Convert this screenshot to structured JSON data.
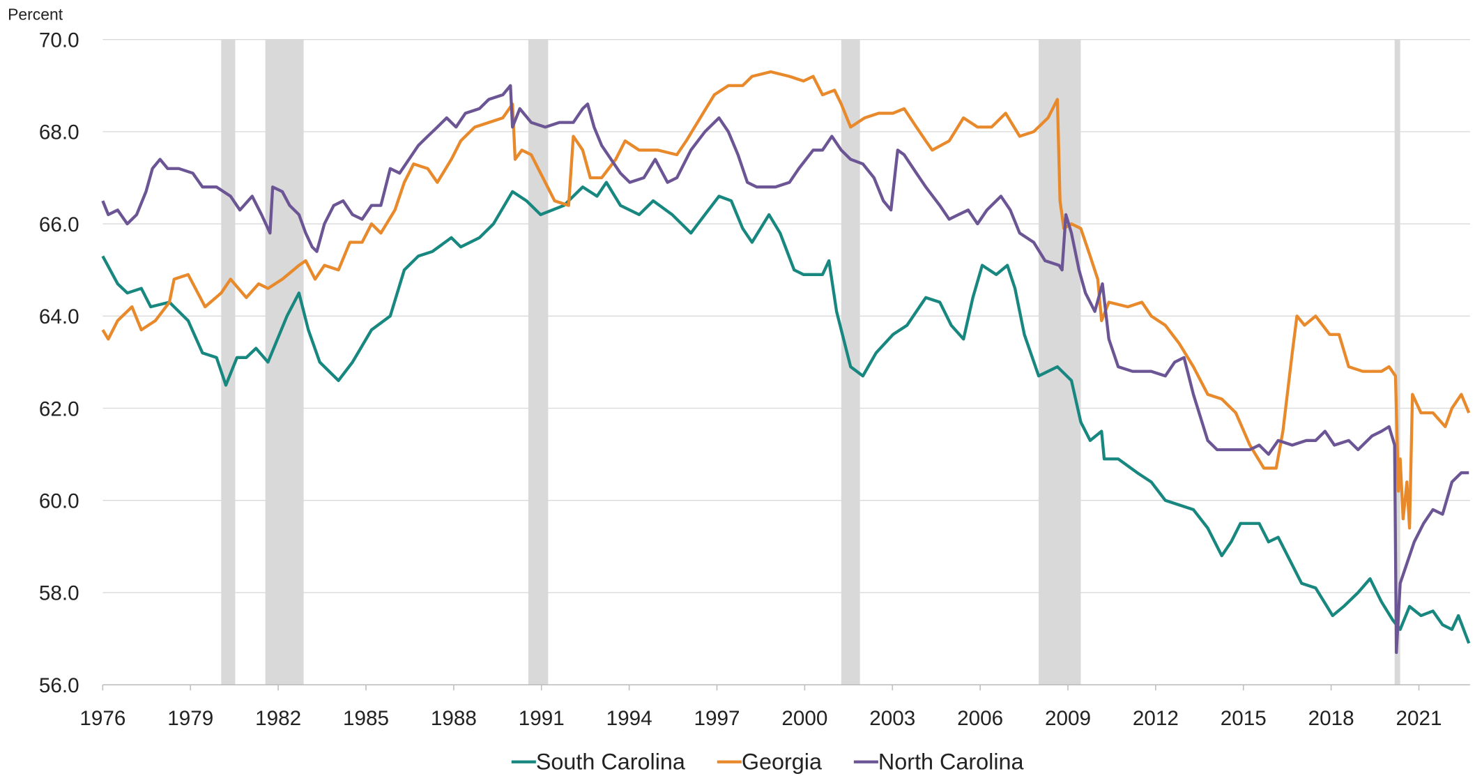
{
  "chart_data": {
    "type": "line",
    "y_axis_label": "Percent",
    "xlim": [
      1976,
      2022.75
    ],
    "xticks": [
      1976,
      1979,
      1982,
      1985,
      1988,
      1991,
      1994,
      1997,
      2000,
      2003,
      2006,
      2009,
      2012,
      2015,
      2018,
      2021
    ],
    "ylim": [
      56,
      70
    ],
    "yticks": [
      {
        "value": 56,
        "label": "56.0"
      },
      {
        "value": 58,
        "label": "58.0"
      },
      {
        "value": 60,
        "label": "60.0"
      },
      {
        "value": 62,
        "label": "62.0"
      },
      {
        "value": 64,
        "label": "64.0"
      },
      {
        "value": 66,
        "label": "66.0"
      },
      {
        "value": 68,
        "label": "68.0"
      },
      {
        "value": 70,
        "label": "70.0"
      }
    ],
    "grid": true,
    "legend": "bottom",
    "recession_color": "#d9d9d9",
    "recessions": [
      [
        1980.05,
        1980.53
      ],
      [
        1981.56,
        1982.87
      ],
      [
        1990.55,
        1991.23
      ],
      [
        2001.25,
        2001.89
      ],
      [
        2008.0,
        2009.44
      ],
      [
        2020.17,
        2020.36
      ]
    ],
    "series": [
      {
        "name": "South Carolina",
        "color": "#17877f",
        "x": [
          1976.0,
          1976.51,
          1976.84,
          1977.32,
          1977.64,
          1978.28,
          1978.92,
          1979.41,
          1979.89,
          1980.21,
          1980.59,
          1980.91,
          1981.24,
          1981.65,
          1982.3,
          1982.71,
          1983.03,
          1983.42,
          1984.06,
          1984.54,
          1985.19,
          1985.83,
          1986.31,
          1986.79,
          1987.27,
          1987.92,
          1988.24,
          1988.88,
          1989.36,
          1990.01,
          1990.49,
          1990.97,
          1991.77,
          1992.41,
          1992.9,
          1993.22,
          1993.7,
          1994.34,
          1994.82,
          1995.47,
          1996.11,
          1996.59,
          1997.07,
          1997.49,
          1997.88,
          1998.2,
          1998.78,
          1999.16,
          1999.64,
          1999.96,
          2000.61,
          2000.83,
          2001.09,
          2001.57,
          2001.99,
          2002.44,
          2003.02,
          2003.5,
          2004.14,
          2004.62,
          2005.01,
          2005.43,
          2005.75,
          2006.07,
          2006.55,
          2006.93,
          2007.19,
          2007.51,
          2008.0,
          2008.64,
          2009.12,
          2009.44,
          2009.76,
          2010.15,
          2010.24,
          2010.72,
          2011.37,
          2011.85,
          2012.33,
          2012.81,
          2013.29,
          2013.78,
          2014.26,
          2014.58,
          2014.9,
          2015.54,
          2015.86,
          2016.19,
          2016.67,
          2016.99,
          2017.47,
          2018.05,
          2018.43,
          2018.92,
          2019.33,
          2019.72,
          2020.11,
          2020.36,
          2020.68,
          2021.07,
          2021.48,
          2021.81,
          2022.13,
          2022.35,
          2022.71
        ],
        "values": [
          65.3,
          64.7,
          64.5,
          64.6,
          64.2,
          64.3,
          63.9,
          63.2,
          63.1,
          62.5,
          63.1,
          63.1,
          63.3,
          63.0,
          64.0,
          64.5,
          63.7,
          63.0,
          62.6,
          63.0,
          63.7,
          64.0,
          65.0,
          65.3,
          65.4,
          65.7,
          65.5,
          65.7,
          66.0,
          66.7,
          66.5,
          66.2,
          66.4,
          66.8,
          66.6,
          66.9,
          66.4,
          66.2,
          66.5,
          66.2,
          65.8,
          66.2,
          66.6,
          66.5,
          65.9,
          65.6,
          66.2,
          65.8,
          65.0,
          64.9,
          64.9,
          65.2,
          64.1,
          62.9,
          62.7,
          63.2,
          63.6,
          63.8,
          64.4,
          64.3,
          63.8,
          63.5,
          64.4,
          65.1,
          64.9,
          65.1,
          64.6,
          63.6,
          62.7,
          62.9,
          62.6,
          61.7,
          61.3,
          61.5,
          60.9,
          60.9,
          60.6,
          60.4,
          60.0,
          59.9,
          59.8,
          59.4,
          58.8,
          59.1,
          59.5,
          59.5,
          59.1,
          59.2,
          58.6,
          58.2,
          58.1,
          57.5,
          57.7,
          58.0,
          58.3,
          57.8,
          57.4,
          57.2,
          57.7,
          57.5,
          57.6,
          57.3,
          57.2,
          57.5,
          56.9
        ]
      },
      {
        "name": "Georgia",
        "color": "#e8892b",
        "x": [
          1976.0,
          1976.19,
          1976.51,
          1977.0,
          1977.32,
          1977.8,
          1978.28,
          1978.44,
          1978.92,
          1979.5,
          1980.05,
          1980.37,
          1980.91,
          1981.33,
          1981.65,
          1982.14,
          1982.71,
          1982.94,
          1983.26,
          1983.58,
          1984.06,
          1984.45,
          1984.87,
          1985.19,
          1985.51,
          1985.99,
          1986.31,
          1986.63,
          1987.11,
          1987.44,
          1987.92,
          1988.24,
          1988.72,
          1989.2,
          1989.68,
          1990.01,
          1990.1,
          1990.33,
          1990.65,
          1990.97,
          1991.45,
          1991.93,
          1992.09,
          1992.41,
          1992.67,
          1993.06,
          1993.54,
          1993.86,
          1994.34,
          1994.98,
          1995.63,
          1995.95,
          1996.43,
          1996.91,
          1997.39,
          1997.88,
          1998.2,
          1998.84,
          1999.48,
          1999.96,
          2000.29,
          2000.61,
          2001.02,
          2001.25,
          2001.57,
          2002.05,
          2002.53,
          2003.02,
          2003.4,
          2003.82,
          2004.14,
          2004.36,
          2004.94,
          2005.43,
          2005.91,
          2006.39,
          2006.87,
          2007.35,
          2007.83,
          2008.32,
          2008.64,
          2008.73,
          2008.86,
          2009.12,
          2009.44,
          2009.76,
          2010.02,
          2010.15,
          2010.4,
          2011.05,
          2011.53,
          2011.85,
          2012.33,
          2012.81,
          2013.29,
          2013.78,
          2014.26,
          2014.74,
          2015.22,
          2015.7,
          2016.12,
          2016.35,
          2016.67,
          2016.83,
          2017.09,
          2017.47,
          2017.95,
          2018.27,
          2018.6,
          2019.08,
          2019.72,
          2019.98,
          2020.2,
          2020.3,
          2020.36,
          2020.46,
          2020.59,
          2020.68,
          2020.78,
          2021.07,
          2021.48,
          2021.9,
          2022.13,
          2022.45,
          2022.71
        ],
        "values": [
          63.7,
          63.5,
          63.9,
          64.2,
          63.7,
          63.9,
          64.3,
          64.8,
          64.9,
          64.2,
          64.5,
          64.8,
          64.4,
          64.7,
          64.6,
          64.8,
          65.1,
          65.2,
          64.8,
          65.1,
          65.0,
          65.6,
          65.6,
          66.0,
          65.8,
          66.3,
          66.9,
          67.3,
          67.2,
          66.9,
          67.4,
          67.8,
          68.1,
          68.2,
          68.3,
          68.6,
          67.4,
          67.6,
          67.5,
          67.1,
          66.5,
          66.4,
          67.9,
          67.6,
          67.0,
          67.0,
          67.4,
          67.8,
          67.6,
          67.6,
          67.5,
          67.8,
          68.3,
          68.8,
          69.0,
          69.0,
          69.2,
          69.3,
          69.2,
          69.1,
          69.2,
          68.8,
          68.9,
          68.6,
          68.1,
          68.3,
          68.4,
          68.4,
          68.5,
          68.1,
          67.8,
          67.6,
          67.8,
          68.3,
          68.1,
          68.1,
          68.4,
          67.9,
          68.0,
          68.3,
          68.7,
          66.5,
          65.9,
          66.0,
          65.9,
          65.3,
          64.8,
          63.9,
          64.3,
          64.2,
          64.3,
          64.0,
          63.8,
          63.4,
          62.9,
          62.3,
          62.2,
          61.9,
          61.2,
          60.7,
          60.7,
          61.5,
          63.2,
          64.0,
          63.8,
          64.0,
          63.6,
          63.6,
          62.9,
          62.8,
          62.8,
          62.9,
          62.7,
          60.2,
          60.9,
          59.6,
          60.4,
          59.4,
          62.3,
          61.9,
          61.9,
          61.6,
          62.0,
          62.3,
          61.9
        ]
      },
      {
        "name": "North Carolina",
        "color": "#6c5595",
        "x": [
          1976.0,
          1976.19,
          1976.51,
          1976.84,
          1977.16,
          1977.48,
          1977.7,
          1977.96,
          1978.22,
          1978.6,
          1979.08,
          1979.41,
          1979.89,
          1980.37,
          1980.69,
          1981.11,
          1981.43,
          1981.72,
          1981.81,
          1982.14,
          1982.39,
          1982.71,
          1982.94,
          1983.16,
          1983.32,
          1983.58,
          1983.9,
          1984.22,
          1984.54,
          1984.87,
          1985.19,
          1985.51,
          1985.83,
          1986.15,
          1986.47,
          1986.79,
          1987.11,
          1987.44,
          1987.76,
          1988.08,
          1988.4,
          1988.88,
          1989.2,
          1989.68,
          1989.94,
          1990.01,
          1990.26,
          1990.65,
          1991.13,
          1991.61,
          1992.09,
          1992.41,
          1992.58,
          1992.8,
          1993.06,
          1993.38,
          1993.7,
          1994.02,
          1994.5,
          1994.89,
          1995.31,
          1995.63,
          1996.11,
          1996.59,
          1997.07,
          1997.39,
          1997.72,
          1998.04,
          1998.36,
          1999.0,
          1999.48,
          1999.8,
          2000.29,
          2000.61,
          2000.93,
          2001.25,
          2001.57,
          2001.99,
          2002.37,
          2002.69,
          2002.95,
          2003.18,
          2003.4,
          2003.82,
          2004.14,
          2004.62,
          2004.94,
          2005.26,
          2005.59,
          2005.91,
          2006.23,
          2006.71,
          2007.03,
          2007.35,
          2007.83,
          2008.22,
          2008.7,
          2008.8,
          2008.93,
          2009.12,
          2009.38,
          2009.6,
          2009.92,
          2010.18,
          2010.4,
          2010.72,
          2011.21,
          2011.85,
          2012.33,
          2012.65,
          2012.97,
          2013.29,
          2013.78,
          2014.1,
          2014.58,
          2015.22,
          2015.54,
          2015.86,
          2016.19,
          2016.67,
          2017.15,
          2017.47,
          2017.79,
          2018.11,
          2018.6,
          2018.92,
          2019.4,
          2019.72,
          2019.98,
          2020.17,
          2020.23,
          2020.36,
          2020.52,
          2020.84,
          2021.16,
          2021.48,
          2021.81,
          2022.13,
          2022.45,
          2022.71
        ],
        "values": [
          66.5,
          66.2,
          66.3,
          66.0,
          66.2,
          66.7,
          67.2,
          67.4,
          67.2,
          67.2,
          67.1,
          66.8,
          66.8,
          66.6,
          66.3,
          66.6,
          66.2,
          65.8,
          66.8,
          66.7,
          66.4,
          66.2,
          65.8,
          65.5,
          65.4,
          66.0,
          66.4,
          66.5,
          66.2,
          66.1,
          66.4,
          66.4,
          67.2,
          67.1,
          67.4,
          67.7,
          67.9,
          68.1,
          68.3,
          68.1,
          68.4,
          68.5,
          68.7,
          68.8,
          69.0,
          68.1,
          68.5,
          68.2,
          68.1,
          68.2,
          68.2,
          68.5,
          68.6,
          68.1,
          67.7,
          67.4,
          67.1,
          66.9,
          67.0,
          67.4,
          66.9,
          67.0,
          67.6,
          68.0,
          68.3,
          68.0,
          67.5,
          66.9,
          66.8,
          66.8,
          66.9,
          67.2,
          67.6,
          67.6,
          67.9,
          67.6,
          67.4,
          67.3,
          67.0,
          66.5,
          66.3,
          67.6,
          67.5,
          67.1,
          66.8,
          66.4,
          66.1,
          66.2,
          66.3,
          66.0,
          66.3,
          66.6,
          66.3,
          65.8,
          65.6,
          65.2,
          65.1,
          65.0,
          66.2,
          65.8,
          65.0,
          64.5,
          64.1,
          64.7,
          63.5,
          62.9,
          62.8,
          62.8,
          62.7,
          63.0,
          63.1,
          62.3,
          61.3,
          61.1,
          61.1,
          61.1,
          61.2,
          61.0,
          61.3,
          61.2,
          61.3,
          61.3,
          61.5,
          61.2,
          61.3,
          61.1,
          61.4,
          61.5,
          61.6,
          61.2,
          56.7,
          58.2,
          58.5,
          59.1,
          59.5,
          59.8,
          59.7,
          60.4,
          60.6,
          60.6
        ]
      }
    ]
  }
}
